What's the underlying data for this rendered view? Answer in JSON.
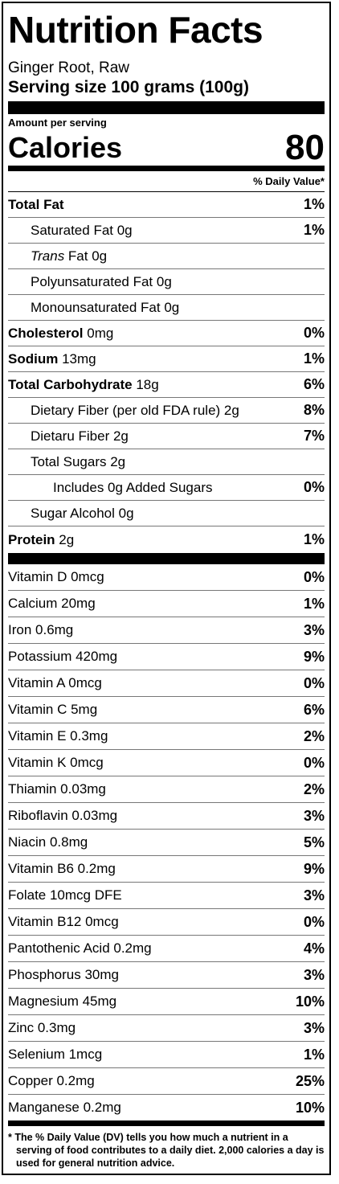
{
  "title": "Nutrition Facts",
  "food_name": "Ginger Root, Raw",
  "serving_size": "Serving size 100 grams (100g)",
  "amount_per_serving": "Amount per serving",
  "calories_label": "Calories",
  "calories_value": "80",
  "daily_value_header": "% Daily Value*",
  "nutrients": [
    {
      "name": "Total Fat",
      "amount": "",
      "dv": "1%"
    },
    {
      "name": "Saturated Fat 0g",
      "amount": "",
      "dv": "1%"
    },
    {
      "name_italic": "Trans",
      "name": " Fat 0g",
      "amount": "",
      "dv": ""
    },
    {
      "name": "Polyunsaturated Fat 0g",
      "amount": "",
      "dv": ""
    },
    {
      "name": "Monounsaturated Fat 0g",
      "amount": "",
      "dv": ""
    },
    {
      "name": "Cholesterol",
      "amount": " 0mg",
      "dv": "0%"
    },
    {
      "name": "Sodium",
      "amount": " 13mg",
      "dv": "1%"
    },
    {
      "name": "Total Carbohydrate",
      "amount": " 18g",
      "dv": "6%"
    },
    {
      "name": "Dietary Fiber (per old FDA rule) 2g",
      "amount": "",
      "dv": "8%"
    },
    {
      "name": "Dietaru Fiber 2g",
      "amount": "",
      "dv": "7%"
    },
    {
      "name": "Total Sugars 2g",
      "amount": "",
      "dv": ""
    },
    {
      "name": "Includes 0g Added Sugars",
      "amount": "",
      "dv": "0%"
    },
    {
      "name": "Sugar Alcohol 0g",
      "amount": "",
      "dv": ""
    },
    {
      "name": "Protein",
      "amount": " 2g",
      "dv": "1%"
    }
  ],
  "vitamins": [
    {
      "label": "Vitamin D 0mcg",
      "dv": "0%"
    },
    {
      "label": "Calcium 20mg",
      "dv": "1%"
    },
    {
      "label": "Iron 0.6mg",
      "dv": "3%"
    },
    {
      "label": "Potassium 420mg",
      "dv": "9%"
    },
    {
      "label": "Vitamin A 0mcg",
      "dv": "0%"
    },
    {
      "label": "Vitamin C 5mg",
      "dv": "6%"
    },
    {
      "label": "Vitamin E 0.3mg",
      "dv": "2%"
    },
    {
      "label": "Vitamin K 0mcg",
      "dv": "0%"
    },
    {
      "label": "Thiamin 0.03mg",
      "dv": "2%"
    },
    {
      "label": "Riboflavin 0.03mg",
      "dv": "3%"
    },
    {
      "label": "Niacin 0.8mg",
      "dv": "5%"
    },
    {
      "label": "Vitamin B6 0.2mg",
      "dv": "9%"
    },
    {
      "label": "Folate 10mcg DFE",
      "dv": "3%"
    },
    {
      "label": "Vitamin B12 0mcg",
      "dv": "0%"
    },
    {
      "label": "Pantothenic Acid 0.2mg",
      "dv": "4%"
    },
    {
      "label": "Phosphorus 30mg",
      "dv": "3%"
    },
    {
      "label": "Magnesium 45mg",
      "dv": "10%"
    },
    {
      "label": "Zinc 0.3mg",
      "dv": "3%"
    },
    {
      "label": "Selenium 1mcg",
      "dv": "1%"
    },
    {
      "label": "Copper 0.2mg",
      "dv": "25%"
    },
    {
      "label": "Manganese 0.2mg",
      "dv": "10%"
    }
  ],
  "footnote": "* The % Daily Value (DV) tells you how much a nutrient in a serving of food contributes to a daily diet. 2,000 calories a day is used for general nutrition advice."
}
